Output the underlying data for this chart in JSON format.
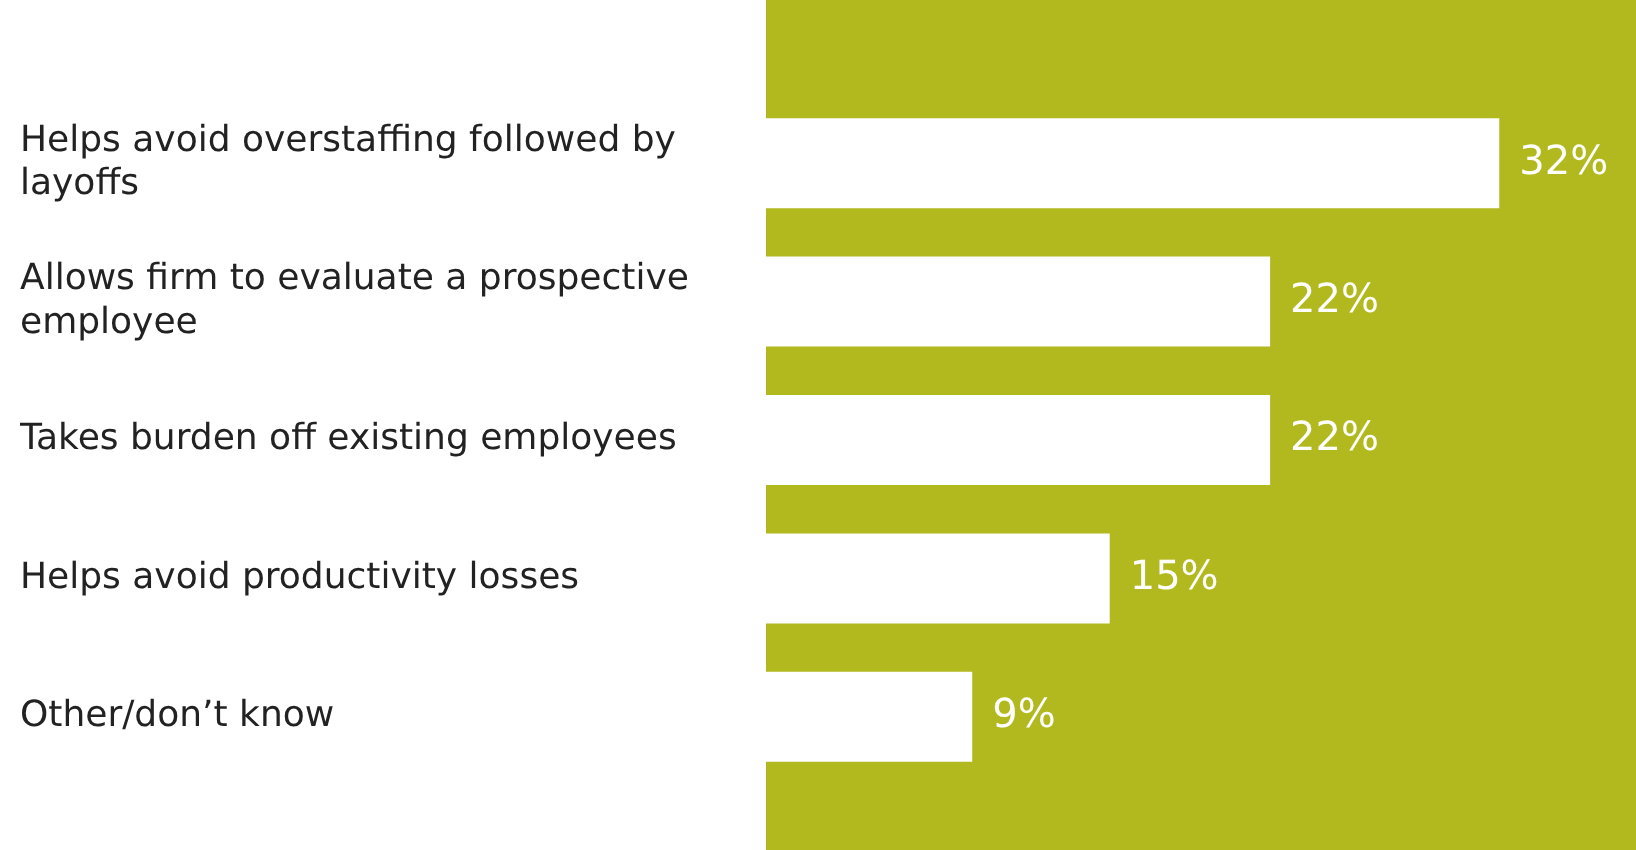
{
  "chart_data": {
    "type": "bar",
    "orientation": "horizontal",
    "categories": [
      "Helps avoid overstaffing followed by layoffs",
      "Allows firm to evaluate a prospective employee",
      "Takes burden off existing employees",
      "Helps avoid productivity losses",
      "Other/don’t know"
    ],
    "values": [
      32,
      22,
      22,
      15,
      9
    ],
    "value_labels": [
      "32%",
      "22%",
      "22%",
      "15%",
      "9%"
    ],
    "color": "#ffffff"
  }
}
